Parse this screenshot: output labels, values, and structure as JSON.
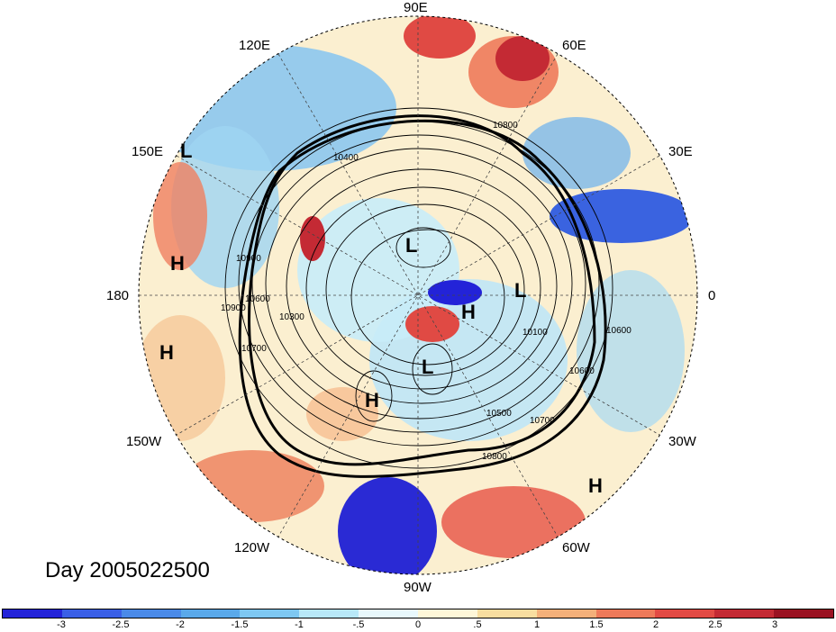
{
  "title": "Day 2005022500",
  "longitude_labels": [
    "90E",
    "60E",
    "120E",
    "30E",
    "150E",
    "0",
    "180",
    "30W",
    "150W",
    "60W",
    "120W",
    "90W"
  ],
  "pressure_markers": [
    "L",
    "L",
    "L",
    "L",
    "H",
    "H",
    "H",
    "H",
    "H"
  ],
  "contour_labels": [
    "10800",
    "10400",
    "10900",
    "10600",
    "10900",
    "10700",
    "10100",
    "10600",
    "10700",
    "10800",
    "10500",
    "10600",
    "10300"
  ],
  "colorbar": {
    "labels": [
      "-3",
      "-2.5",
      "-2",
      "-1.5",
      "-1",
      "-.5",
      "0",
      ".5",
      "1",
      "1.5",
      "2",
      "2.5",
      "3"
    ],
    "colors": [
      "#2323d8",
      "#3a5fe6",
      "#4a8ae8",
      "#5aa9ea",
      "#7ec8f2",
      "#b8e8f8",
      "#e8f8fc",
      "#fef7d8",
      "#f8dea0",
      "#f4b07a",
      "#ee7a5a",
      "#e24a44",
      "#c42a34",
      "#9a1222"
    ]
  }
}
